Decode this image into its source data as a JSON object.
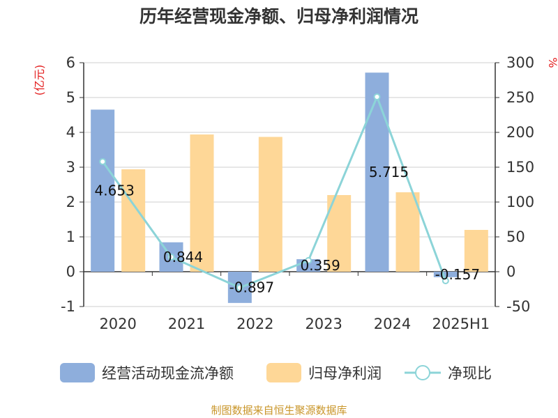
{
  "chart_data": {
    "type": "bar",
    "title": "历年经营现金净额、归母净利润情况",
    "categories": [
      "2020",
      "2021",
      "2022",
      "2023",
      "2024",
      "2025H1"
    ],
    "y_left": {
      "unit": "(亿元)",
      "min": -1,
      "max": 6,
      "ticks": [
        "6",
        "5",
        "4",
        "3",
        "2",
        "1",
        "0",
        "-1"
      ]
    },
    "y_right": {
      "unit": "%",
      "min": -50,
      "max": 300,
      "ticks": [
        "300",
        "250",
        "200",
        "150",
        "100",
        "50",
        "0",
        "-50"
      ]
    },
    "series": [
      {
        "name": "经营活动现金流净额",
        "type": "bar",
        "axis": "left",
        "color": "#8eaedc",
        "values": [
          4.653,
          0.844,
          -0.897,
          0.359,
          5.715,
          -0.157
        ],
        "labels": [
          "4.653",
          "0.844",
          "-0.897",
          "0.359",
          "5.715",
          "-0.157"
        ]
      },
      {
        "name": "归母净利润",
        "type": "bar",
        "axis": "left",
        "color": "#fed797",
        "values": [
          2.94,
          3.94,
          3.87,
          2.2,
          2.28,
          1.2
        ]
      },
      {
        "name": "净现比",
        "type": "line",
        "axis": "right",
        "color": "#8cd4d8",
        "values": [
          158,
          21,
          -23,
          16,
          251,
          -13
        ]
      }
    ],
    "grid": true,
    "legend": "bottom"
  },
  "source": "制图数据来自恒生聚源数据库"
}
